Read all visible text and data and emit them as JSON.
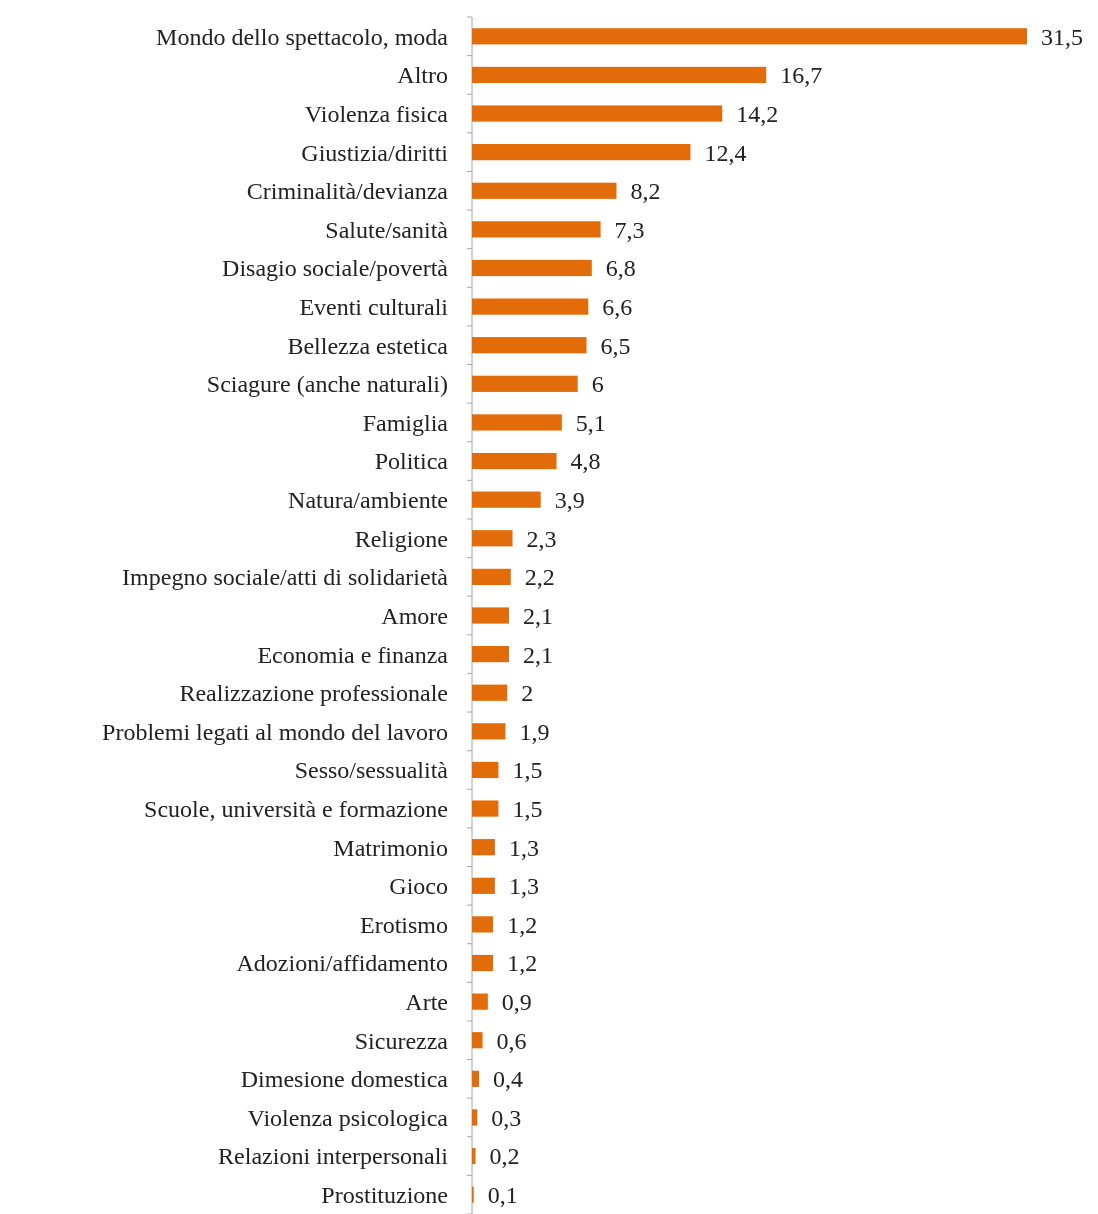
{
  "chart_data": {
    "type": "bar",
    "orientation": "horizontal",
    "categories": [
      "Mondo dello spettacolo, moda",
      "Altro",
      "Violenza fisica",
      "Giustizia/diritti",
      "Criminalità/devianza",
      "Salute/sanità",
      "Disagio sociale/povertà",
      "Eventi culturali",
      "Bellezza estetica",
      "Sciagure (anche naturali)",
      "Famiglia",
      "Politica",
      "Natura/ambiente",
      "Religione",
      "Impegno sociale/atti di solidarietà",
      "Amore",
      "Economia e finanza",
      "Realizzazione professionale",
      "Problemi legati al mondo del lavoro",
      "Sesso/sessualità",
      "Scuole, università e formazione",
      "Matrimonio",
      "Gioco",
      "Erotismo",
      "Adozioni/affidamento",
      "Arte",
      "Sicurezza",
      "Dimesione domestica",
      "Violenza psicologica",
      "Relazioni interpersonali",
      "Prostituzione"
    ],
    "values": [
      31.5,
      16.7,
      14.2,
      12.4,
      8.2,
      7.3,
      6.8,
      6.6,
      6.5,
      6,
      5.1,
      4.8,
      3.9,
      2.3,
      2.2,
      2.1,
      2.1,
      2,
      1.9,
      1.5,
      1.5,
      1.3,
      1.3,
      1.2,
      1.2,
      0.9,
      0.6,
      0.4,
      0.3,
      0.2,
      0.1
    ],
    "value_labels": [
      "31,5",
      "16,7",
      "14,2",
      "12,4",
      "8,2",
      "7,3",
      "6,8",
      "6,6",
      "6,5",
      "6",
      "5,1",
      "4,8",
      "3,9",
      "2,3",
      "2,2",
      "2,1",
      "2,1",
      "2",
      "1,9",
      "1,5",
      "1,5",
      "1,3",
      "1,3",
      "1,2",
      "1,2",
      "0,9",
      "0,6",
      "0,4",
      "0,3",
      "0,2",
      "0,1"
    ],
    "color": "#e36c0a"
  }
}
